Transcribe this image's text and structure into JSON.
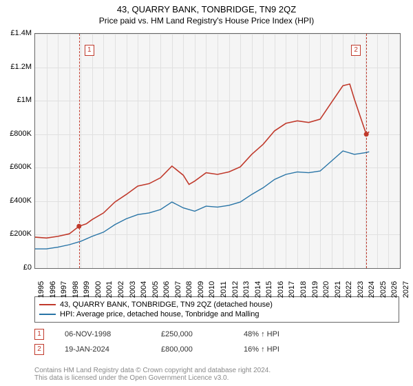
{
  "title": "43, QUARRY BANK, TONBRIDGE, TN9 2QZ",
  "subtitle": "Price paid vs. HM Land Registry's House Price Index (HPI)",
  "chart": {
    "type": "line",
    "background_color": "#f5f5f5",
    "grid_color": "#e0e0e0",
    "border_color": "#666666",
    "xlim": [
      1995,
      2027
    ],
    "ylim": [
      0,
      1400000
    ],
    "ytick_step": 200000,
    "ytick_labels": [
      "£0",
      "£200K",
      "£400K",
      "£600K",
      "£800K",
      "£1M",
      "£1.2M",
      "£1.4M"
    ],
    "xtick_step": 1,
    "xtick_labels": [
      "1995",
      "1996",
      "1997",
      "1998",
      "1999",
      "2000",
      "2001",
      "2002",
      "2003",
      "2004",
      "2005",
      "2006",
      "2007",
      "2008",
      "2009",
      "2010",
      "2011",
      "2012",
      "2013",
      "2014",
      "2015",
      "2016",
      "2017",
      "2018",
      "2019",
      "2020",
      "2021",
      "2022",
      "2023",
      "2024",
      "2025",
      "2026",
      "2027"
    ],
    "series": [
      {
        "name": "price_paid",
        "label": "43, QUARRY BANK, TONBRIDGE, TN9 2QZ (detached house)",
        "color": "#c0392b",
        "line_width": 1.6,
        "data": [
          [
            1995,
            185000
          ],
          [
            1996,
            180000
          ],
          [
            1997,
            190000
          ],
          [
            1998,
            205000
          ],
          [
            1998.85,
            250000
          ],
          [
            1999.5,
            265000
          ],
          [
            2000,
            290000
          ],
          [
            2001,
            330000
          ],
          [
            2002,
            395000
          ],
          [
            2003,
            440000
          ],
          [
            2004,
            490000
          ],
          [
            2005,
            505000
          ],
          [
            2006,
            540000
          ],
          [
            2007,
            610000
          ],
          [
            2008,
            555000
          ],
          [
            2008.5,
            500000
          ],
          [
            2009,
            520000
          ],
          [
            2010,
            570000
          ],
          [
            2011,
            560000
          ],
          [
            2012,
            575000
          ],
          [
            2013,
            605000
          ],
          [
            2014,
            680000
          ],
          [
            2015,
            740000
          ],
          [
            2016,
            820000
          ],
          [
            2017,
            865000
          ],
          [
            2018,
            880000
          ],
          [
            2019,
            870000
          ],
          [
            2020,
            890000
          ],
          [
            2021,
            990000
          ],
          [
            2022,
            1090000
          ],
          [
            2022.6,
            1100000
          ],
          [
            2023,
            1010000
          ],
          [
            2024.05,
            800000
          ],
          [
            2024.3,
            815000
          ]
        ]
      },
      {
        "name": "hpi",
        "label": "HPI: Average price, detached house, Tonbridge and Malling",
        "color": "#2874a6",
        "line_width": 1.4,
        "data": [
          [
            1995,
            115000
          ],
          [
            1996,
            115000
          ],
          [
            1997,
            125000
          ],
          [
            1998,
            140000
          ],
          [
            1999,
            160000
          ],
          [
            2000,
            190000
          ],
          [
            2001,
            215000
          ],
          [
            2002,
            260000
          ],
          [
            2003,
            295000
          ],
          [
            2004,
            320000
          ],
          [
            2005,
            330000
          ],
          [
            2006,
            350000
          ],
          [
            2007,
            395000
          ],
          [
            2008,
            360000
          ],
          [
            2009,
            340000
          ],
          [
            2010,
            370000
          ],
          [
            2011,
            365000
          ],
          [
            2012,
            375000
          ],
          [
            2013,
            395000
          ],
          [
            2014,
            440000
          ],
          [
            2015,
            480000
          ],
          [
            2016,
            530000
          ],
          [
            2017,
            560000
          ],
          [
            2018,
            575000
          ],
          [
            2019,
            570000
          ],
          [
            2020,
            580000
          ],
          [
            2021,
            640000
          ],
          [
            2022,
            700000
          ],
          [
            2023,
            680000
          ],
          [
            2024,
            690000
          ],
          [
            2024.3,
            695000
          ]
        ]
      }
    ],
    "markers": [
      {
        "id": "1",
        "year": 1998.85,
        "price": 250000
      },
      {
        "id": "2",
        "year": 2024.05,
        "price": 800000
      }
    ]
  },
  "legend": {
    "items": [
      {
        "color": "#c0392b",
        "label": "43, QUARRY BANK, TONBRIDGE, TN9 2QZ (detached house)"
      },
      {
        "color": "#2874a6",
        "label": "HPI: Average price, detached house, Tonbridge and Malling"
      }
    ]
  },
  "sales": [
    {
      "marker": "1",
      "date": "06-NOV-1998",
      "price": "£250,000",
      "vs_hpi": "48% ↑ HPI"
    },
    {
      "marker": "2",
      "date": "19-JAN-2024",
      "price": "£800,000",
      "vs_hpi": "16% ↑ HPI"
    }
  ],
  "footer": {
    "line1": "Contains HM Land Registry data © Crown copyright and database right 2024.",
    "line2": "This data is licensed under the Open Government Licence v3.0."
  }
}
